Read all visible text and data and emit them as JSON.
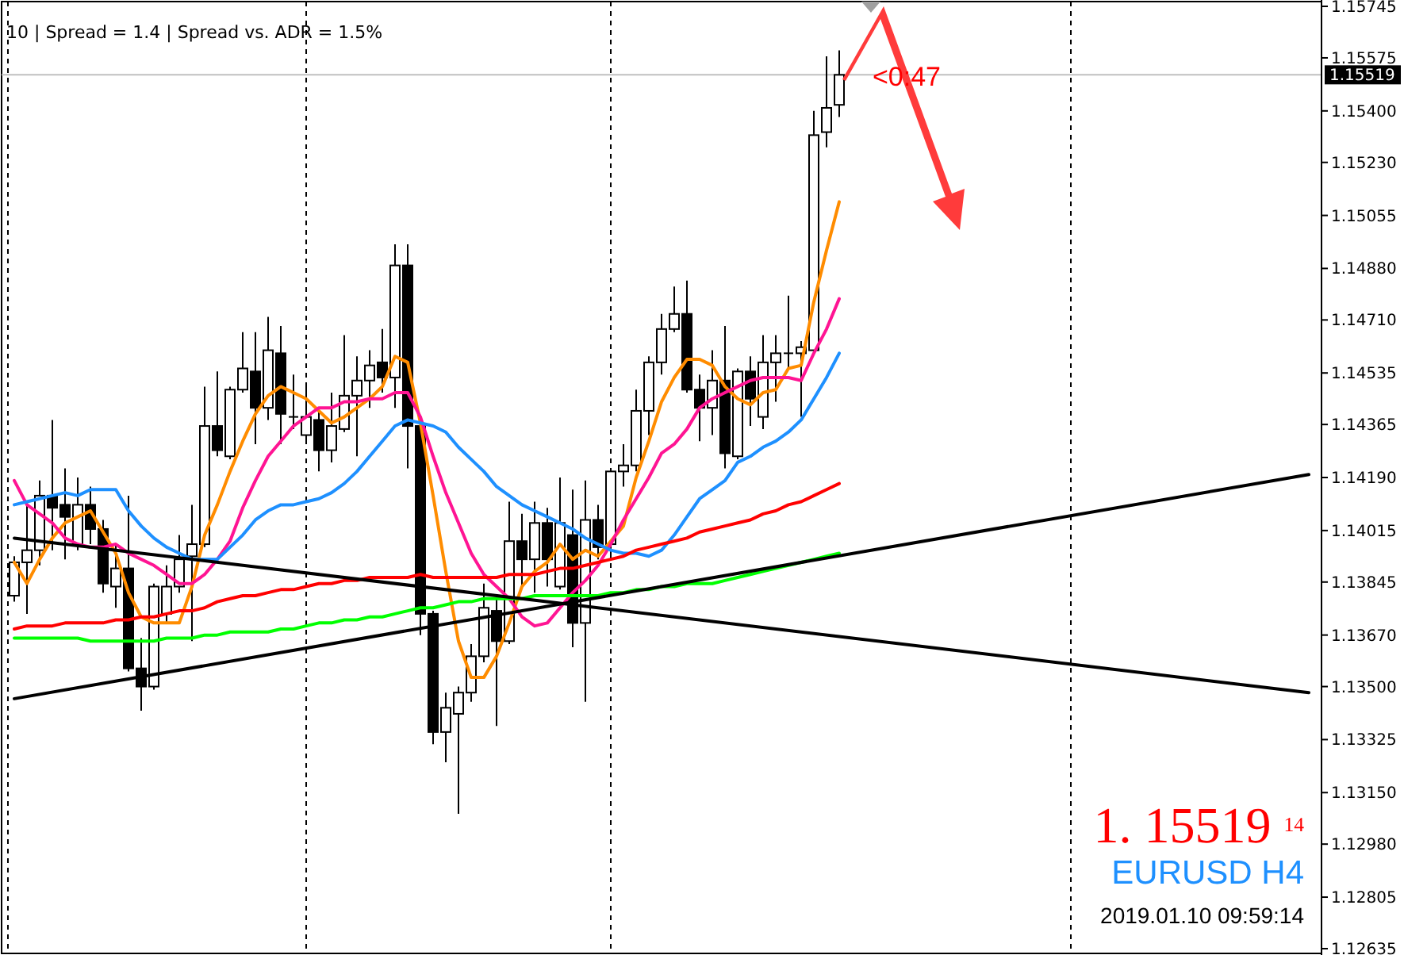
{
  "chart_data": {
    "type": "candlestick",
    "tick_labels": "y",
    "categories": [
      null,
      null,
      null,
      null,
      null,
      null,
      null,
      null,
      null,
      null,
      null,
      null,
      null,
      null,
      null,
      null,
      null,
      null,
      null,
      null,
      null,
      null,
      null,
      null,
      null,
      null,
      null,
      null,
      null,
      null,
      null,
      null,
      null,
      null,
      null,
      null,
      null,
      null,
      null,
      null,
      null,
      null,
      null,
      null,
      null,
      null,
      null,
      null,
      null,
      null,
      null,
      null,
      null,
      null,
      null,
      null,
      null,
      null,
      null,
      null,
      null,
      null,
      null,
      null,
      null,
      null,
      null,
      null,
      null,
      null,
      null,
      null,
      null,
      null,
      null,
      null,
      null,
      null,
      null,
      null,
      null,
      null,
      null,
      null,
      null,
      null,
      null,
      null,
      null,
      null,
      null,
      null,
      null,
      null,
      null,
      null,
      null,
      null,
      null,
      null,
      null,
      null,
      null
    ],
    "ohlc": [
      [
        1.138,
        1.1393,
        1.1378,
        1.1391
      ],
      [
        1.1391,
        1.141,
        1.1374,
        1.1395
      ],
      [
        1.1395,
        1.1418,
        1.139,
        1.1413
      ],
      [
        1.1413,
        1.1438,
        1.1395,
        1.1409
      ],
      [
        1.141,
        1.1422,
        1.1392,
        1.1406
      ],
      [
        1.1397,
        1.1419,
        1.1395,
        1.141
      ],
      [
        1.141,
        1.1416,
        1.1397,
        1.1402
      ],
      [
        1.1402,
        1.1405,
        1.1381,
        1.1384
      ],
      [
        1.1383,
        1.1397,
        1.1376,
        1.1389
      ],
      [
        1.1389,
        1.1413,
        1.1355,
        1.1356
      ],
      [
        1.1356,
        1.1366,
        1.1342,
        1.135
      ],
      [
        1.135,
        1.1384,
        1.1349,
        1.1383
      ],
      [
        1.1374,
        1.139,
        1.1371,
        1.1383
      ],
      [
        1.1383,
        1.14,
        1.1381,
        1.1392
      ],
      [
        1.1393,
        1.141,
        1.1365,
        1.1397
      ],
      [
        1.1397,
        1.1449,
        1.1396,
        1.1436
      ],
      [
        1.1436,
        1.1454,
        1.1426,
        1.1428
      ],
      [
        1.1426,
        1.1449,
        1.1425,
        1.1448
      ],
      [
        1.1448,
        1.1467,
        1.1447,
        1.1455
      ],
      [
        1.1454,
        1.1467,
        1.143,
        1.1442
      ],
      [
        1.1442,
        1.1472,
        1.1438,
        1.1461
      ],
      [
        1.146,
        1.1469,
        1.143,
        1.144
      ],
      [
        1.1439,
        1.1453,
        1.1435,
        1.1439
      ],
      [
        1.1433,
        1.145,
        1.1431,
        1.1439
      ],
      [
        1.1438,
        1.1442,
        1.1421,
        1.1428
      ],
      [
        1.1428,
        1.1447,
        1.1424,
        1.1436
      ],
      [
        1.1435,
        1.1466,
        1.1434,
        1.1446
      ],
      [
        1.1446,
        1.1459,
        1.1426,
        1.1451
      ],
      [
        1.1451,
        1.1461,
        1.1442,
        1.1456
      ],
      [
        1.1457,
        1.1468,
        1.1447,
        1.1452
      ],
      [
        1.1452,
        1.1496,
        1.1442,
        1.1489
      ],
      [
        1.1489,
        1.1496,
        1.1422,
        1.1436
      ],
      [
        1.1436,
        1.1437,
        1.1367,
        1.1374
      ],
      [
        1.1374,
        1.1375,
        1.1331,
        1.1335
      ],
      [
        1.1335,
        1.1348,
        1.1325,
        1.1343
      ],
      [
        1.1341,
        1.135,
        1.1308,
        1.1348
      ],
      [
        1.1348,
        1.1364,
        1.1345,
        1.136
      ],
      [
        1.136,
        1.1384,
        1.1358,
        1.1376
      ],
      [
        1.1375,
        1.138,
        1.1337,
        1.1365
      ],
      [
        1.1365,
        1.1411,
        1.1364,
        1.1398
      ],
      [
        1.1398,
        1.1407,
        1.1383,
        1.1392
      ],
      [
        1.1392,
        1.1411,
        1.1381,
        1.1404
      ],
      [
        1.1404,
        1.1409,
        1.1383,
        1.1392
      ],
      [
        1.1383,
        1.1419,
        1.1382,
        1.1404
      ],
      [
        1.14,
        1.1415,
        1.1363,
        1.1371
      ],
      [
        1.1371,
        1.1418,
        1.1345,
        1.1405
      ],
      [
        1.1405,
        1.141,
        1.1392,
        1.1396
      ],
      [
        1.1397,
        1.1422,
        1.1392,
        1.1421
      ],
      [
        1.1421,
        1.143,
        1.1416,
        1.1423
      ],
      [
        1.1423,
        1.1448,
        1.1421,
        1.1441
      ],
      [
        1.1441,
        1.1459,
        1.1433,
        1.1457
      ],
      [
        1.1457,
        1.1473,
        1.1453,
        1.1468
      ],
      [
        1.1468,
        1.1482,
        1.1467,
        1.1473
      ],
      [
        1.1473,
        1.1484,
        1.1447,
        1.1448
      ],
      [
        1.1448,
        1.1453,
        1.1431,
        1.1442
      ],
      [
        1.1442,
        1.1461,
        1.1433,
        1.1451
      ],
      [
        1.1451,
        1.1469,
        1.1422,
        1.1427
      ],
      [
        1.1426,
        1.1455,
        1.1425,
        1.1454
      ],
      [
        1.1454,
        1.1459,
        1.1436,
        1.1445
      ],
      [
        1.1439,
        1.1466,
        1.1435,
        1.1457
      ],
      [
        1.1457,
        1.1466,
        1.1444,
        1.146
      ],
      [
        1.146,
        1.1479,
        1.1455,
        1.146
      ],
      [
        1.146,
        1.1464,
        1.1439,
        1.1462
      ],
      [
        1.1461,
        1.154,
        1.146,
        1.1532
      ],
      [
        1.1533,
        1.1558,
        1.1528,
        1.1541
      ],
      [
        1.1542,
        1.156,
        1.1538,
        1.15519
      ],
      null,
      null,
      null,
      null,
      null,
      null,
      null,
      null,
      null,
      null,
      null,
      null,
      null,
      null,
      null,
      null,
      null,
      null,
      null,
      null,
      null,
      null,
      null,
      null,
      null,
      null,
      null,
      null,
      null,
      null,
      null,
      null,
      null,
      null,
      null,
      null,
      null
    ],
    "series": [
      {
        "type": "line",
        "color": "#ff8c00",
        "values": [
          1.1391,
          1.1384,
          1.1392,
          1.1399,
          1.1404,
          1.1406,
          1.1408,
          1.1401,
          1.1394,
          1.1381,
          1.1373,
          1.1371,
          1.1371,
          1.1371,
          1.1383,
          1.14,
          1.141,
          1.1421,
          1.1431,
          1.144,
          1.1446,
          1.1449,
          1.1447,
          1.1445,
          1.1441,
          1.1437,
          1.1439,
          1.1442,
          1.1445,
          1.1449,
          1.1459,
          1.1457,
          1.1437,
          1.1413,
          1.1388,
          1.1365,
          1.1353,
          1.1353,
          1.136,
          1.1371,
          1.1383,
          1.1388,
          1.1391,
          1.1397,
          1.1392,
          1.1395,
          1.1393,
          1.1398,
          1.1403,
          1.1419,
          1.1431,
          1.1444,
          1.1452,
          1.1458,
          1.1458,
          1.1456,
          1.1449,
          1.1445,
          1.1443,
          1.1447,
          1.1448,
          1.1455,
          1.1456,
          1.1477,
          1.1494,
          1.151,
          null,
          null,
          null,
          null,
          null,
          null,
          null,
          null,
          null,
          null,
          null,
          null,
          null,
          null,
          null,
          null,
          null,
          null,
          null,
          null,
          null,
          null,
          null,
          null,
          null,
          null,
          null,
          null,
          null,
          null,
          null,
          null,
          null,
          null,
          null,
          null,
          null
        ]
      },
      {
        "type": "line",
        "color": "#ff1493",
        "values": [
          1.1418,
          1.141,
          1.1407,
          1.1404,
          1.1399,
          1.1397,
          1.1396,
          1.1396,
          1.1397,
          1.1394,
          1.1392,
          1.139,
          1.1387,
          1.1384,
          1.1384,
          1.1387,
          1.1392,
          1.1398,
          1.1409,
          1.1418,
          1.1426,
          1.1431,
          1.1436,
          1.1439,
          1.1442,
          1.1442,
          1.1444,
          1.1444,
          1.1445,
          1.1445,
          1.1447,
          1.1447,
          1.1439,
          1.1426,
          1.1414,
          1.1404,
          1.1394,
          1.1387,
          1.1383,
          1.1379,
          1.1373,
          1.137,
          1.1371,
          1.1376,
          1.1381,
          1.1385,
          1.139,
          1.1397,
          1.1405,
          1.1412,
          1.1419,
          1.1427,
          1.143,
          1.1435,
          1.1442,
          1.1445,
          1.1447,
          1.1449,
          1.1451,
          1.1452,
          1.1452,
          1.1452,
          1.1451,
          1.146,
          1.1468,
          1.1478,
          null,
          null,
          null,
          null,
          null,
          null,
          null,
          null,
          null,
          null,
          null,
          null,
          null,
          null,
          null,
          null,
          null,
          null,
          null,
          null,
          null,
          null,
          null,
          null,
          null,
          null,
          null,
          null,
          null,
          null,
          null,
          null,
          null,
          null,
          null,
          null,
          null
        ]
      },
      {
        "type": "line",
        "color": "#1e90ff",
        "values": [
          1.141,
          1.1411,
          1.1412,
          1.1413,
          1.1414,
          1.1413,
          1.1415,
          1.1415,
          1.1415,
          1.1408,
          1.1403,
          1.1399,
          1.1396,
          1.1394,
          1.1392,
          1.1392,
          1.1392,
          1.1396,
          1.14,
          1.1405,
          1.1408,
          1.141,
          1.141,
          1.1411,
          1.1412,
          1.1414,
          1.1417,
          1.1421,
          1.1426,
          1.1431,
          1.1436,
          1.1438,
          1.1437,
          1.1436,
          1.1434,
          1.1429,
          1.1425,
          1.1421,
          1.1416,
          1.1413,
          1.141,
          1.1408,
          1.1406,
          1.1404,
          1.1402,
          1.1399,
          1.1397,
          1.1395,
          1.1394,
          1.1394,
          1.1393,
          1.1395,
          1.14,
          1.1406,
          1.1412,
          1.1415,
          1.1418,
          1.1424,
          1.1426,
          1.1429,
          1.1431,
          1.1434,
          1.1438,
          1.1445,
          1.1452,
          1.146,
          null,
          null,
          null,
          null,
          null,
          null,
          null,
          null,
          null,
          null,
          null,
          null,
          null,
          null,
          null,
          null,
          null,
          null,
          null,
          null,
          null,
          null,
          null,
          null,
          null,
          null,
          null,
          null,
          null,
          null,
          null,
          null,
          null,
          null,
          null,
          null,
          null
        ]
      },
      {
        "type": "line",
        "color": "#ff0000",
        "values": [
          1.1369,
          1.137,
          1.137,
          1.137,
          1.1371,
          1.1371,
          1.1371,
          1.1371,
          1.1372,
          1.1372,
          1.1373,
          1.1373,
          1.1374,
          1.1375,
          1.1375,
          1.1376,
          1.1378,
          1.1379,
          1.138,
          1.138,
          1.1381,
          1.1382,
          1.1382,
          1.1383,
          1.1384,
          1.1384,
          1.1385,
          1.1385,
          1.1386,
          1.1386,
          1.1386,
          1.1386,
          1.1387,
          1.1386,
          1.1386,
          1.1386,
          1.1386,
          1.1386,
          1.1386,
          1.1387,
          1.1387,
          1.1387,
          1.1388,
          1.1389,
          1.1389,
          1.139,
          1.1391,
          1.1392,
          1.1393,
          1.1395,
          1.1396,
          1.1397,
          1.1398,
          1.1399,
          1.1401,
          1.1402,
          1.1403,
          1.1404,
          1.1405,
          1.1407,
          1.1408,
          1.141,
          1.1411,
          1.1413,
          1.1415,
          1.1417,
          null,
          null,
          null,
          null,
          null,
          null,
          null,
          null,
          null,
          null,
          null,
          null,
          null,
          null,
          null,
          null,
          null,
          null,
          null,
          null,
          null,
          null,
          null,
          null,
          null,
          null,
          null,
          null,
          null,
          null,
          null,
          null,
          null,
          null,
          null,
          null,
          null
        ]
      },
      {
        "type": "line",
        "color": "#00ff00",
        "values": [
          1.1366,
          1.1366,
          1.1366,
          1.1366,
          1.1366,
          1.1366,
          1.1365,
          1.1365,
          1.1365,
          1.1365,
          1.1365,
          1.1365,
          1.1366,
          1.1366,
          1.1366,
          1.1367,
          1.1367,
          1.1368,
          1.1368,
          1.1368,
          1.1368,
          1.1369,
          1.1369,
          1.137,
          1.1371,
          1.1371,
          1.1372,
          1.1372,
          1.1373,
          1.1373,
          1.1374,
          1.1375,
          1.1376,
          1.1376,
          1.1377,
          1.1378,
          1.1378,
          1.1379,
          1.1379,
          1.1379,
          1.1379,
          1.138,
          1.138,
          1.138,
          1.138,
          1.138,
          1.138,
          1.1381,
          1.1381,
          1.1382,
          1.1382,
          1.1383,
          1.1383,
          1.1384,
          1.1384,
          1.1384,
          1.1385,
          1.1386,
          1.1387,
          1.1388,
          1.1389,
          1.139,
          1.1391,
          1.1392,
          1.1393,
          1.1394,
          null,
          null,
          null,
          null,
          null,
          null,
          null,
          null,
          null,
          null,
          null,
          null,
          null,
          null,
          null,
          null,
          null,
          null,
          null,
          null,
          null,
          null,
          null,
          null,
          null,
          null,
          null,
          null,
          null,
          null,
          null,
          null,
          null,
          null,
          null,
          null,
          null
        ]
      },
      {
        "type": "line",
        "color": "#000000",
        "values": [
          1.1399,
          null,
          null,
          null,
          null,
          null,
          null,
          null,
          null,
          null,
          null,
          null,
          null,
          null,
          null,
          null,
          null,
          null,
          null,
          null,
          null,
          null,
          null,
          null,
          null,
          null,
          null,
          null,
          null,
          null,
          null,
          null,
          null,
          null,
          null,
          null,
          null,
          null,
          null,
          null,
          null,
          null,
          null,
          null,
          null,
          null,
          null,
          null,
          null,
          null,
          null,
          null,
          null,
          null,
          null,
          null,
          null,
          null,
          null,
          null,
          null,
          null,
          null,
          null,
          null,
          null,
          null,
          null,
          null,
          null,
          null,
          null,
          null,
          null,
          null,
          null,
          null,
          null,
          null,
          null,
          null,
          null,
          null,
          null,
          null,
          null,
          null,
          null,
          null,
          null,
          null,
          null,
          null,
          null,
          null,
          null,
          null,
          null,
          null,
          null,
          null,
          null,
          1.1348
        ]
      },
      {
        "type": "line",
        "color": "#000000",
        "values": [
          1.1346,
          null,
          null,
          null,
          null,
          null,
          null,
          null,
          null,
          null,
          null,
          null,
          null,
          null,
          null,
          null,
          null,
          null,
          null,
          null,
          null,
          null,
          null,
          null,
          null,
          null,
          null,
          null,
          null,
          null,
          null,
          null,
          null,
          null,
          null,
          null,
          null,
          null,
          null,
          null,
          null,
          null,
          null,
          null,
          null,
          null,
          null,
          null,
          null,
          null,
          null,
          null,
          null,
          null,
          null,
          null,
          null,
          null,
          null,
          null,
          null,
          null,
          null,
          null,
          null,
          null,
          null,
          null,
          null,
          null,
          null,
          null,
          null,
          null,
          null,
          null,
          null,
          null,
          null,
          null,
          null,
          null,
          null,
          null,
          null,
          null,
          null,
          null,
          null,
          null,
          null,
          null,
          null,
          null,
          null,
          null,
          null,
          null,
          null,
          null,
          null,
          null,
          1.142
        ]
      }
    ],
    "ylim": [
      1.12614,
      1.15766
    ],
    "yticks": [
      {
        "value": 1.15745,
        "label": "1.15745"
      },
      {
        "value": 1.15575,
        "label": "1.15575"
      },
      {
        "value": 1.154,
        "label": "1.15400"
      },
      {
        "value": 1.1523,
        "label": "1.15230"
      },
      {
        "value": 1.15055,
        "label": "1.15055"
      },
      {
        "value": 1.1488,
        "label": "1.14880"
      },
      {
        "value": 1.1471,
        "label": "1.14710"
      },
      {
        "value": 1.14535,
        "label": "1.14535"
      },
      {
        "value": 1.14365,
        "label": "1.14365"
      },
      {
        "value": 1.1419,
        "label": "1.14190"
      },
      {
        "value": 1.14015,
        "label": "1.14015"
      },
      {
        "value": 1.13845,
        "label": "1.13845"
      },
      {
        "value": 1.1367,
        "label": "1.13670"
      },
      {
        "value": 1.135,
        "label": "1.13500"
      },
      {
        "value": 1.13325,
        "label": "1.13325"
      },
      {
        "value": 1.1315,
        "label": "1.13150"
      },
      {
        "value": 1.1298,
        "label": "1.12980"
      },
      {
        "value": 1.12805,
        "label": "1.12805"
      },
      {
        "value": 1.12635,
        "label": "1.12635"
      }
    ],
    "ref_lines": [
      {
        "axis": "y",
        "value": 1.15519,
        "label": "1.15519",
        "color": "#c0c0c0"
      }
    ],
    "annotations": [
      "10  |  Spread = 1.4  |  Spread vs. ADR = 1.5%",
      "<0:47",
      "1. 15519 $^{14}$",
      "EURUSD H4",
      "2019.01.10 09:59:14"
    ]
  }
}
